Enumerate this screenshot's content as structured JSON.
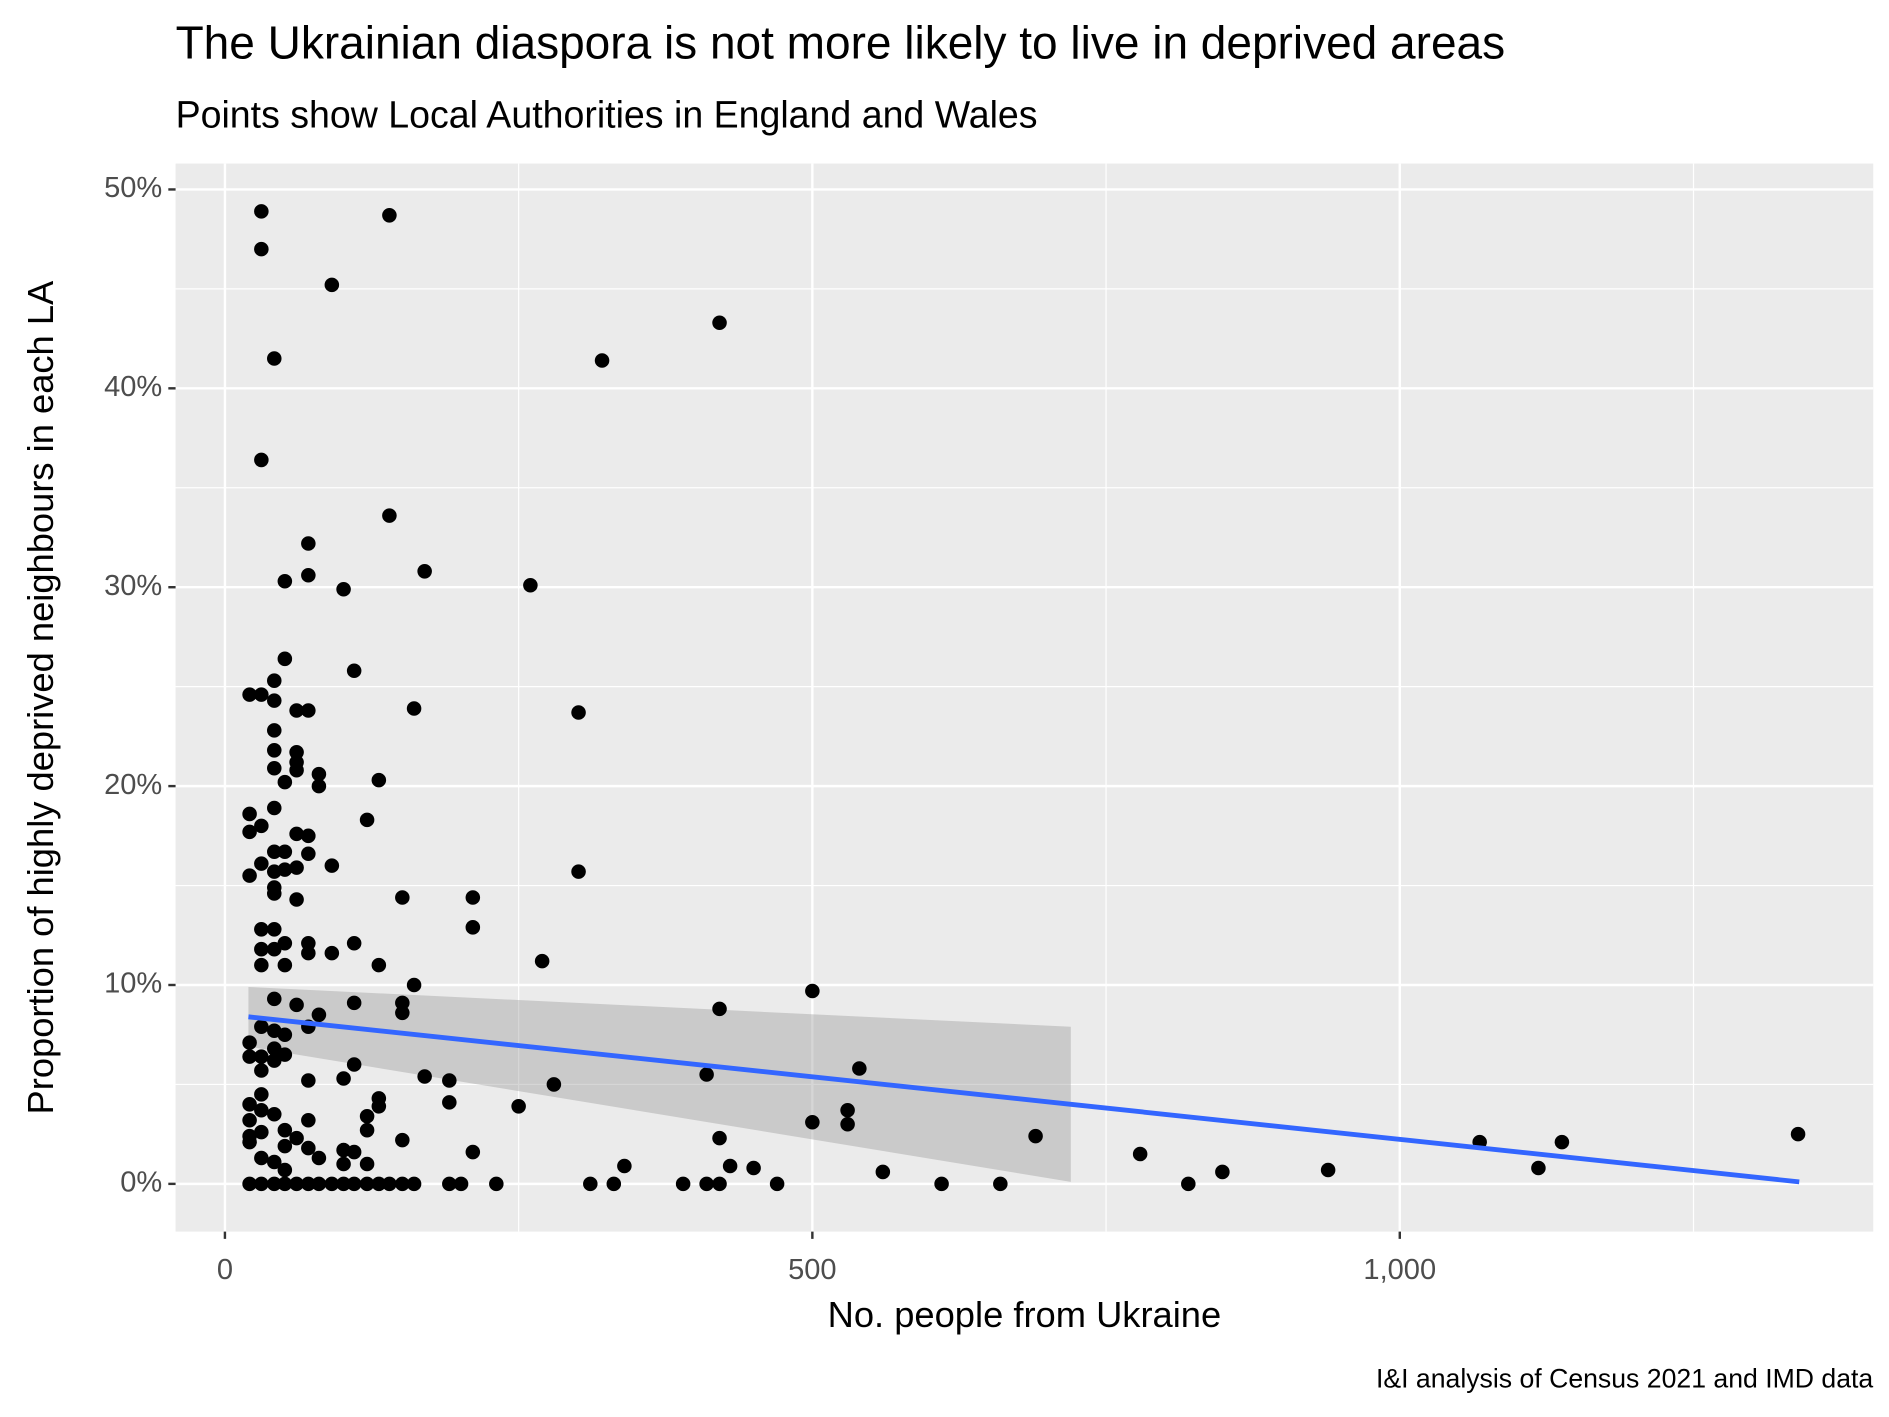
{
  "chart_data": {
    "type": "scatter",
    "title": "The Ukrainian diaspora is not more likely to live in deprived areas",
    "subtitle": "Points show Local Authorities in England and Wales",
    "x_label": "No. people from Ukraine",
    "y_label": "Proportion of highly deprived neighbours in each LA",
    "caption": "I&I analysis of Census 2021 and IMD data",
    "xlim": [
      -42,
      1403
    ],
    "ylim": [
      -2.4,
      51.3
    ],
    "xticks": [
      0,
      500,
      {
        "value": 1000,
        "label": "1,000"
      }
    ],
    "yticks": [
      {
        "value": 0,
        "label": "0%"
      },
      {
        "value": 10,
        "label": "10%"
      },
      {
        "value": 20,
        "label": "20%"
      },
      {
        "value": 30,
        "label": "30%"
      },
      {
        "value": 40,
        "label": "40%"
      },
      {
        "value": 50,
        "label": "50%"
      }
    ],
    "xminor": [
      250,
      750,
      1250
    ],
    "yminor": [
      5,
      15,
      25,
      35,
      45
    ],
    "grid": true,
    "color": "#000000",
    "x": [
      31,
      31,
      140,
      91,
      421,
      321,
      42,
      31,
      140,
      71,
      71,
      170,
      51,
      101,
      260,
      51,
      110,
      42,
      21,
      31,
      42,
      61,
      71,
      161,
      301,
      42,
      42,
      61,
      61,
      42,
      80,
      61,
      131,
      51,
      80,
      21,
      42,
      121,
      31,
      21,
      61,
      71,
      42,
      51,
      71,
      31,
      91,
      51,
      61,
      21,
      42,
      301,
      42,
      42,
      151,
      211,
      61,
      31,
      42,
      211,
      51,
      71,
      110,
      42,
      31,
      71,
      91,
      270,
      31,
      51,
      131,
      161,
      500,
      42,
      110,
      151,
      61,
      421,
      151,
      80,
      31,
      71,
      42,
      51,
      21,
      42,
      21,
      31,
      51,
      42,
      110,
      31,
      410,
      540,
      71,
      101,
      170,
      191,
      280,
      31,
      131,
      131,
      191,
      250,
      21,
      31,
      42,
      21,
      71,
      121,
      530,
      500,
      530,
      121,
      21,
      31,
      51,
      61,
      421,
      690,
      1339,
      1068,
      1138,
      151,
      21,
      51,
      71,
      101,
      110,
      211,
      779,
      31,
      80,
      42,
      121,
      101,
      340,
      430,
      450,
      1118,
      939,
      560,
      849,
      51,
      21,
      31,
      42,
      51,
      61,
      71,
      80,
      91,
      101,
      110,
      121,
      131,
      140,
      151,
      161,
      191,
      201,
      231,
      311,
      331,
      390,
      410,
      421,
      470,
      610,
      660,
      820
    ],
    "y": [
      48.9,
      47.0,
      48.7,
      45.2,
      43.3,
      41.4,
      41.5,
      36.4,
      33.6,
      32.2,
      30.6,
      30.8,
      30.3,
      29.9,
      30.1,
      26.4,
      25.8,
      25.3,
      24.6,
      24.6,
      24.3,
      23.8,
      23.8,
      23.9,
      23.7,
      22.8,
      21.8,
      21.7,
      21.2,
      20.9,
      20.6,
      20.8,
      20.3,
      20.2,
      20.0,
      18.6,
      18.9,
      18.3,
      18.0,
      17.7,
      17.6,
      17.5,
      16.7,
      16.7,
      16.6,
      16.1,
      16.0,
      15.8,
      15.9,
      15.5,
      15.7,
      15.7,
      14.9,
      14.6,
      14.4,
      14.4,
      14.3,
      12.8,
      12.8,
      12.9,
      12.1,
      12.1,
      12.1,
      11.8,
      11.8,
      11.6,
      11.6,
      11.2,
      11.0,
      11.0,
      11.0,
      10.0,
      9.7,
      9.3,
      9.1,
      9.1,
      9.0,
      8.8,
      8.6,
      8.5,
      7.9,
      7.9,
      7.7,
      7.5,
      7.1,
      6.8,
      6.4,
      6.4,
      6.5,
      6.2,
      6.0,
      5.7,
      5.5,
      5.8,
      5.2,
      5.3,
      5.4,
      5.2,
      5.0,
      4.5,
      4.3,
      3.9,
      4.1,
      3.9,
      4.0,
      3.7,
      3.5,
      3.2,
      3.2,
      3.4,
      3.7,
      3.1,
      3.0,
      2.7,
      2.4,
      2.6,
      2.7,
      2.3,
      2.3,
      2.4,
      2.5,
      2.1,
      2.1,
      2.2,
      2.1,
      1.9,
      1.8,
      1.7,
      1.6,
      1.6,
      1.5,
      1.3,
      1.3,
      1.1,
      1.0,
      1.0,
      0.9,
      0.9,
      0.8,
      0.8,
      0.7,
      0.6,
      0.6,
      0.7,
      0,
      0,
      0,
      0,
      0,
      0,
      0,
      0,
      0,
      0,
      0,
      0,
      0,
      0,
      0,
      0,
      0,
      0,
      0,
      0,
      0,
      0,
      0,
      0,
      0,
      0,
      0
    ],
    "trend": {
      "x": [
        20,
        720,
        1340
      ],
      "y": [
        8.4,
        4.0,
        0.1
      ],
      "color": "#3366FF"
    },
    "ribbon": {
      "x": [
        20,
        720
      ],
      "lower": [
        6.9,
        0.1
      ],
      "upper": [
        9.9,
        7.9
      ],
      "color": "#999999"
    }
  }
}
